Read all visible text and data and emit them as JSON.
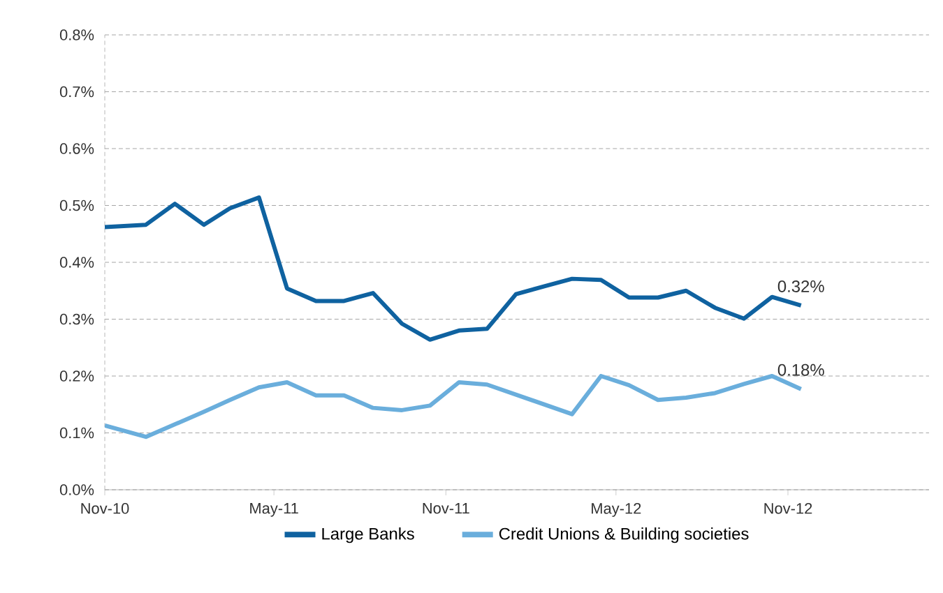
{
  "chart_data": {
    "type": "line",
    "xlim": [
      "2010-11-01",
      "2013-04-01"
    ],
    "xticks": [
      {
        "value": "2010-11-01",
        "label": "Nov-10"
      },
      {
        "value": "2011-05-01",
        "label": "May-11"
      },
      {
        "value": "2011-11-01",
        "label": "Nov-11"
      },
      {
        "value": "2012-05-01",
        "label": "May-12"
      },
      {
        "value": "2012-11-01",
        "label": "Nov-12"
      }
    ],
    "ylim": [
      0,
      0.8
    ],
    "yticks": [
      {
        "value": 0,
        "label": "0.0%"
      },
      {
        "value": 0.1,
        "label": "0.1%"
      },
      {
        "value": 0.2,
        "label": "0.2%"
      },
      {
        "value": 0.3,
        "label": "0.3%"
      },
      {
        "value": 0.4,
        "label": "0.4%"
      },
      {
        "value": 0.5,
        "label": "0.5%"
      },
      {
        "value": 0.6,
        "label": "0.6%"
      },
      {
        "value": 0.7,
        "label": "0.7%"
      },
      {
        "value": 0.8,
        "label": "0.8%"
      }
    ],
    "grid": "y",
    "legend": "bottom",
    "marker": "none",
    "line_style": "solid",
    "series": [
      {
        "name": "Large Banks",
        "color": "#0f62a0",
        "x": [
          "2010-11-01",
          "2010-12-15",
          "2011-01-15",
          "2011-02-15",
          "2011-03-15",
          "2011-04-15",
          "2011-05-15",
          "2011-06-15",
          "2011-07-15",
          "2011-08-15",
          "2011-09-15",
          "2011-10-15",
          "2011-11-15",
          "2011-12-15",
          "2012-01-15",
          "2012-02-15",
          "2012-03-15",
          "2012-04-15",
          "2012-05-15",
          "2012-06-15",
          "2012-07-15",
          "2012-08-15",
          "2012-09-15",
          "2012-10-15",
          "2012-11-15"
        ],
        "values": [
          0.462,
          0.466,
          0.503,
          0.466,
          0.495,
          0.514,
          0.354,
          0.332,
          0.332,
          0.346,
          0.292,
          0.264,
          0.28,
          0.283,
          0.344,
          0.358,
          0.371,
          0.369,
          0.338,
          0.338,
          0.35,
          0.32,
          0.301,
          0.339,
          0.324
        ],
        "value_labels": [
          null,
          null,
          null,
          null,
          null,
          null,
          null,
          null,
          null,
          null,
          null,
          null,
          null,
          null,
          null,
          null,
          null,
          null,
          null,
          null,
          null,
          null,
          null,
          null,
          "0.32%"
        ]
      },
      {
        "name": "Credit Unions & Building societies",
        "color": "#6aaedc",
        "x": [
          "2010-11-01",
          "2010-12-15",
          "2011-01-15",
          "2011-02-15",
          "2011-03-15",
          "2011-04-15",
          "2011-05-15",
          "2011-06-15",
          "2011-07-15",
          "2011-08-15",
          "2011-09-15",
          "2011-10-15",
          "2011-11-15",
          "2011-12-15",
          "2012-03-15",
          "2012-04-15",
          "2012-05-15",
          "2012-06-15",
          "2012-07-15",
          "2012-08-15",
          "2012-09-15",
          "2012-10-15",
          "2012-11-15"
        ],
        "values": [
          0.113,
          0.093,
          0.115,
          0.137,
          0.158,
          0.18,
          0.189,
          0.166,
          0.166,
          0.144,
          0.14,
          0.148,
          0.189,
          0.185,
          0.133,
          0.2,
          0.184,
          0.158,
          0.162,
          0.17,
          0.186,
          0.2,
          0.177
        ],
        "value_labels": [
          null,
          null,
          null,
          null,
          null,
          null,
          null,
          null,
          null,
          null,
          null,
          null,
          null,
          null,
          null,
          null,
          null,
          null,
          null,
          null,
          null,
          null,
          "0.18%"
        ]
      }
    ]
  }
}
